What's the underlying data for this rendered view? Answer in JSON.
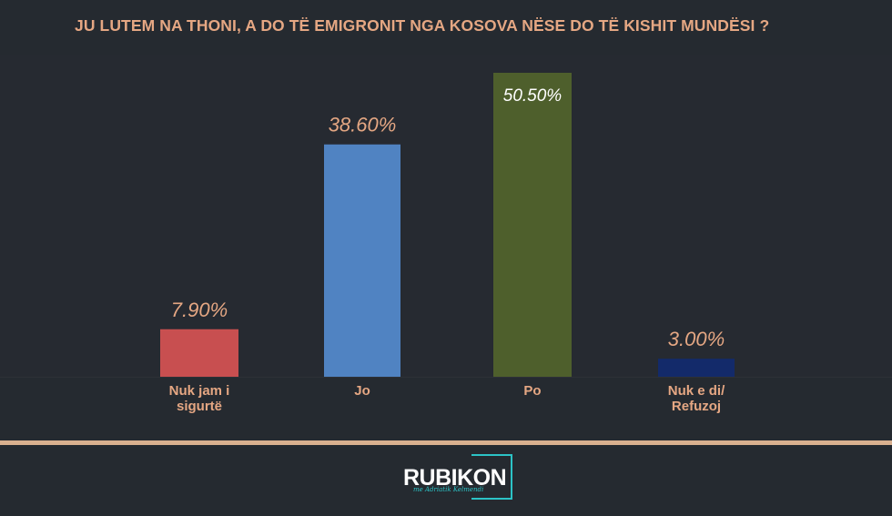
{
  "chart_data": {
    "type": "bar",
    "title": "JU LUTEM NA THONI, A DO TË EMIGRONIT NGA KOSOVA NËSE DO TË KISHIT MUNDËSI ?",
    "categories": [
      [
        "Nuk jam i",
        "sigurtë"
      ],
      [
        "Jo"
      ],
      [
        "Po"
      ],
      [
        "Nuk e di/",
        "Refuzoj"
      ]
    ],
    "values": [
      7.9,
      38.6,
      50.5,
      3.0
    ],
    "data_labels": [
      "7.90%",
      "38.60%",
      "50.50%",
      "3.00%"
    ],
    "colors": [
      "#c84f50",
      "#5083c2",
      "#4e5f2c",
      "#132a6a"
    ],
    "ylim": [
      0,
      50.5
    ],
    "grid": false,
    "legend": "none"
  },
  "brand": {
    "name": "RUBIKON",
    "signature": "me Adriatik Kelmendi"
  }
}
